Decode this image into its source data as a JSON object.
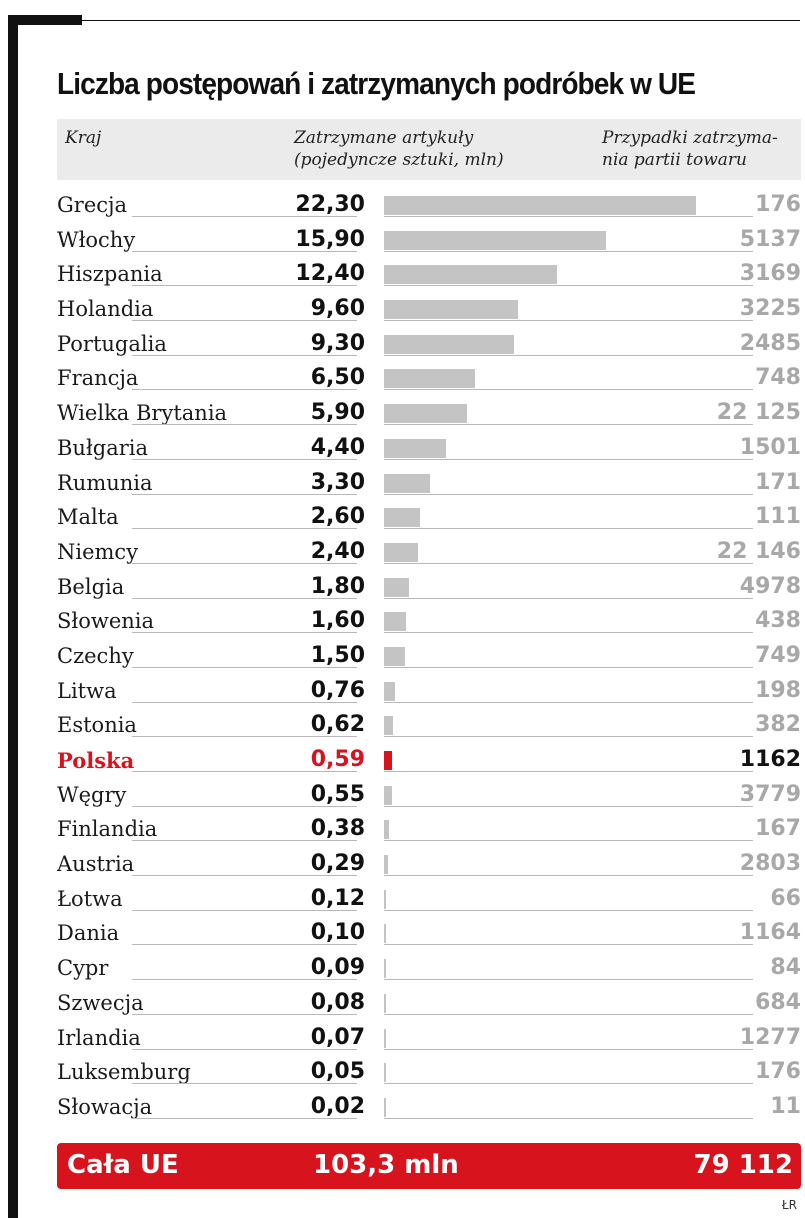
{
  "chart_data": {
    "type": "bar",
    "title": "Liczba postępowań i zatrzymanych podróbek w UE",
    "columns": {
      "country": "Kraj",
      "items": "Zatrzymane artykuły\n(pojedyncze sztuki, mln)",
      "cases": "Przypadki zatrzyma-\nnia partii towaru"
    },
    "xlim": [
      0,
      22.3
    ],
    "highlight_color": "#d7141d",
    "bar_color": "#c4c4c4",
    "rows": [
      {
        "country": "Grecja",
        "value": "22,30",
        "num": 22.3,
        "cases": "176"
      },
      {
        "country": "Włochy",
        "value": "15,90",
        "num": 15.9,
        "cases": "5137"
      },
      {
        "country": "Hiszpania",
        "value": "12,40",
        "num": 12.4,
        "cases": "3169"
      },
      {
        "country": "Holandia",
        "value": "9,60",
        "num": 9.6,
        "cases": "3225"
      },
      {
        "country": "Portugalia",
        "value": "9,30",
        "num": 9.3,
        "cases": "2485"
      },
      {
        "country": "Francja",
        "value": "6,50",
        "num": 6.5,
        "cases": "748"
      },
      {
        "country": "Wielka Brytania",
        "value": "5,90",
        "num": 5.9,
        "cases": "22 125"
      },
      {
        "country": "Bułgaria",
        "value": "4,40",
        "num": 4.4,
        "cases": "1501"
      },
      {
        "country": "Rumunia",
        "value": "3,30",
        "num": 3.3,
        "cases": "171"
      },
      {
        "country": "Malta",
        "value": "2,60",
        "num": 2.6,
        "cases": "111"
      },
      {
        "country": "Niemcy",
        "value": "2,40",
        "num": 2.4,
        "cases": "22 146"
      },
      {
        "country": "Belgia",
        "value": "1,80",
        "num": 1.8,
        "cases": "4978"
      },
      {
        "country": "Słowenia",
        "value": "1,60",
        "num": 1.6,
        "cases": "438"
      },
      {
        "country": "Czechy",
        "value": "1,50",
        "num": 1.5,
        "cases": "749"
      },
      {
        "country": "Litwa",
        "value": "0,76",
        "num": 0.76,
        "cases": "198"
      },
      {
        "country": "Estonia",
        "value": "0,62",
        "num": 0.62,
        "cases": "382"
      },
      {
        "country": "Polska",
        "value": "0,59",
        "num": 0.59,
        "cases": "1162",
        "highlight": true
      },
      {
        "country": "Węgry",
        "value": "0,55",
        "num": 0.55,
        "cases": "3779"
      },
      {
        "country": "Finlandia",
        "value": "0,38",
        "num": 0.38,
        "cases": "167"
      },
      {
        "country": "Austria",
        "value": "0,29",
        "num": 0.29,
        "cases": "2803"
      },
      {
        "country": "Łotwa",
        "value": "0,12",
        "num": 0.12,
        "cases": "66"
      },
      {
        "country": "Dania",
        "value": "0,10",
        "num": 0.1,
        "cases": "1164"
      },
      {
        "country": "Cypr",
        "value": "0,09",
        "num": 0.09,
        "cases": "84"
      },
      {
        "country": "Szwecja",
        "value": "0,08",
        "num": 0.08,
        "cases": "684"
      },
      {
        "country": "Irlandia",
        "value": "0,07",
        "num": 0.07,
        "cases": "1277"
      },
      {
        "country": "Luksemburg",
        "value": "0,05",
        "num": 0.05,
        "cases": "176"
      },
      {
        "country": "Słowacja",
        "value": "0,02",
        "num": 0.02,
        "cases": "11"
      }
    ],
    "total": {
      "label": "Cała UE",
      "items": "103,3 mln",
      "cases": "79 112"
    },
    "source": "ŁR"
  }
}
